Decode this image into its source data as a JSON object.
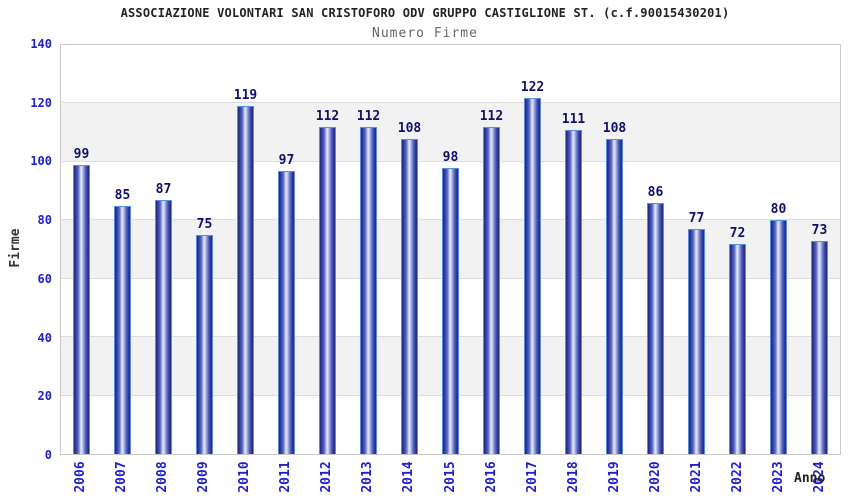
{
  "header": {
    "title": "ASSOCIAZIONE VOLONTARI SAN CRISTOFORO ODV GRUPPO CASTIGLIONE ST. (c.f.90015430201)",
    "subtitle": "Numero Firme"
  },
  "chart_data": {
    "type": "bar",
    "title": "ASSOCIAZIONE VOLONTARI SAN CRISTOFORO ODV GRUPPO CASTIGLIONE ST. (c.f.90015430201)",
    "subtitle": "Numero Firme",
    "categories": [
      "2006",
      "2007",
      "2008",
      "2009",
      "2010",
      "2011",
      "2012",
      "2013",
      "2014",
      "2015",
      "2016",
      "2017",
      "2018",
      "2019",
      "2020",
      "2021",
      "2022",
      "2023",
      "2024"
    ],
    "values": [
      99,
      85,
      87,
      75,
      119,
      97,
      112,
      112,
      108,
      98,
      112,
      122,
      111,
      108,
      86,
      77,
      72,
      80,
      73
    ],
    "xlabel": "Anno",
    "ylabel": "Firme",
    "ylim": [
      0,
      140
    ],
    "ytick_step": 20,
    "yticks": [
      0,
      20,
      40,
      60,
      80,
      100,
      120,
      140
    ],
    "grid": true,
    "legend": "none",
    "colors": {
      "bar_edge_dark": "#23277f",
      "bar_mid": "#5a68bd",
      "bar_highlight": "#e7ebfa",
      "bar_outline": "#5b8dde",
      "value_label": "#10106a",
      "axis_tick_label": "#2020cc",
      "band_white": "#ffffff",
      "band_gray": "#f2f2f2",
      "gridline": "#dcdcdc",
      "plot_border": "#c9c9c9",
      "title_color": "#222222",
      "subtitle_color": "#666666"
    }
  }
}
